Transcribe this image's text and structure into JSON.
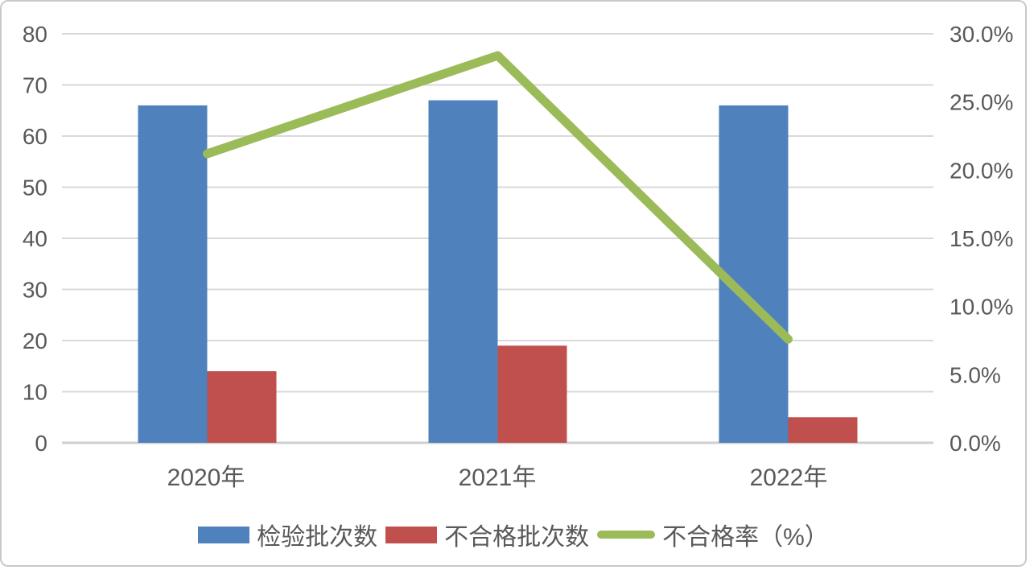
{
  "chart_data": {
    "type": "combo",
    "categories": [
      "2020年",
      "2021年",
      "2022年"
    ],
    "series": [
      {
        "name": "检验批次数",
        "type": "bar",
        "axis": "left",
        "color": "#4F81BD",
        "values": [
          66,
          67,
          66
        ]
      },
      {
        "name": "不合格批次数",
        "type": "bar",
        "axis": "left",
        "color": "#C0504D",
        "values": [
          14,
          19,
          5
        ]
      },
      {
        "name": "不合格率（%）",
        "type": "line",
        "axis": "right",
        "color": "#9BBB59",
        "values": [
          21.2,
          28.4,
          7.6
        ]
      }
    ],
    "left_axis": {
      "min": 0,
      "max": 80,
      "step": 10,
      "tick_labels": [
        "0",
        "10",
        "20",
        "30",
        "40",
        "50",
        "60",
        "70",
        "80"
      ]
    },
    "right_axis": {
      "min": 0,
      "max": 30,
      "step": 5,
      "tick_labels": [
        "0.0%",
        "5.0%",
        "10.0%",
        "15.0%",
        "20.0%",
        "25.0%",
        "30.0%"
      ]
    },
    "grid": true,
    "legend_position": "bottom",
    "colors": {
      "gridline": "#D9D9D9",
      "zero_axis_line": "#CFCFCF",
      "tick_text": "#595959",
      "frame_border": "#C9C9C9"
    }
  }
}
